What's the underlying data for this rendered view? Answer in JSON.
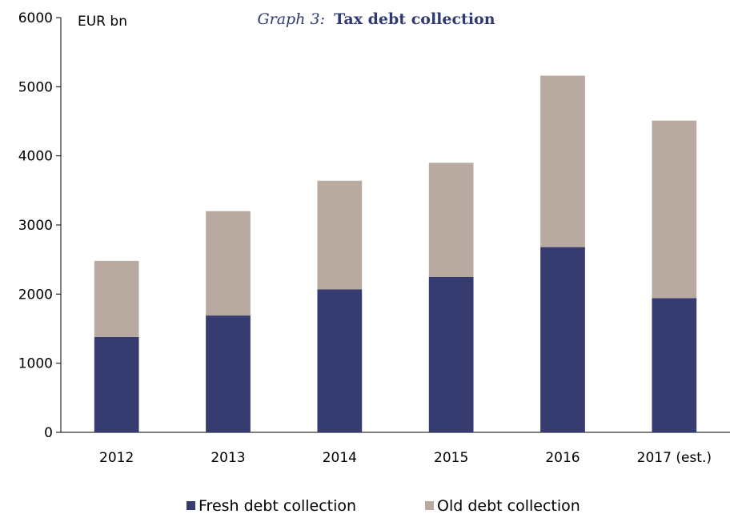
{
  "chart_data": {
    "type": "bar",
    "stacked": true,
    "title_prefix": "Graph 3:",
    "title": "Tax debt collection",
    "unit_label": "EUR bn",
    "categories": [
      "2012",
      "2013",
      "2014",
      "2015",
      "2016",
      "2017 (est.)"
    ],
    "series": [
      {
        "name": "Fresh debt collection",
        "color": "#363c70",
        "values": [
          1380,
          1690,
          2070,
          2250,
          2680,
          1940
        ]
      },
      {
        "name": "Old debt collection",
        "color": "#b8aaa0",
        "values": [
          1100,
          1510,
          1570,
          1650,
          2480,
          2570
        ]
      }
    ],
    "ylim": [
      0,
      6000
    ],
    "yticks": [
      0,
      1000,
      2000,
      3000,
      4000,
      5000,
      6000
    ],
    "grid": false,
    "legend_position": "bottom"
  }
}
